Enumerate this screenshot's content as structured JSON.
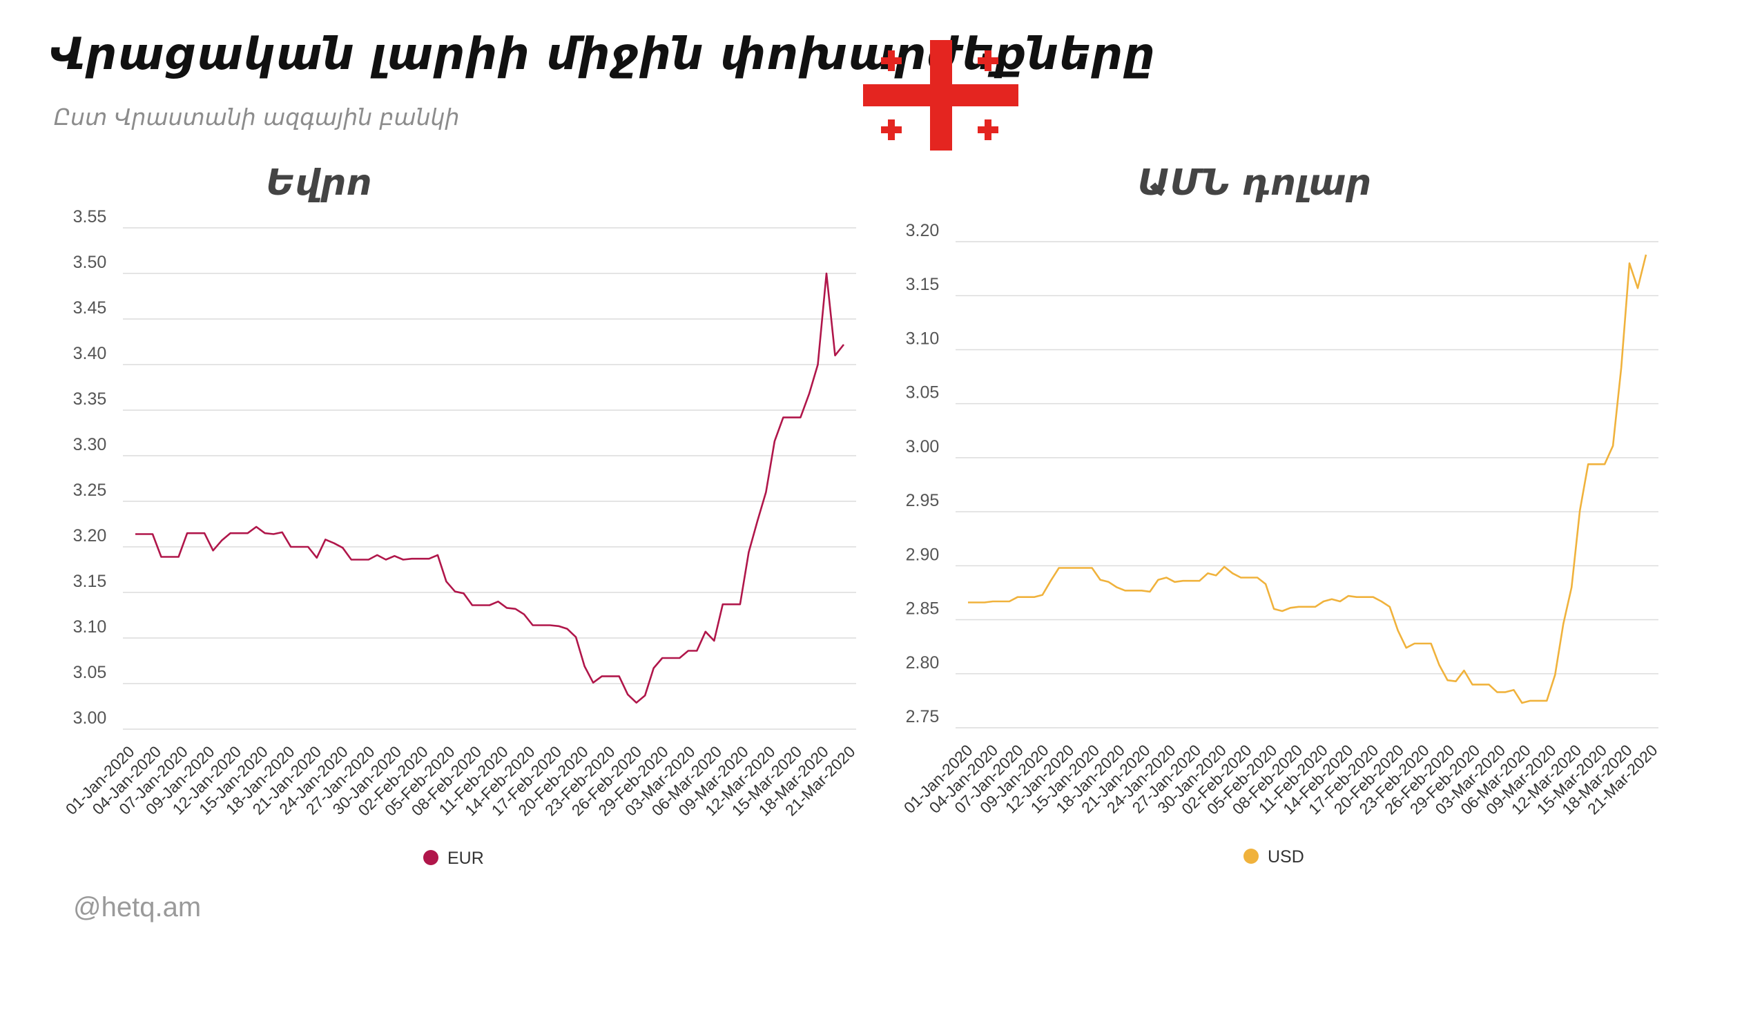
{
  "header": {
    "title": "Վրացական լարիի միջին փոխարժեքները",
    "subtitle": "Ըստ Վրաստանի ազգային բանկի"
  },
  "flag": {
    "icon": "georgia-flag-icon",
    "color": "#e42520"
  },
  "footer": {
    "source": "@hetq.am"
  },
  "chart_data": [
    {
      "type": "line",
      "title": "Եվրո",
      "legend_position": "bottom",
      "grid": true,
      "ylim": [
        3.0,
        3.55
      ],
      "yticks": [
        "3.00",
        "3.05",
        "3.10",
        "3.15",
        "3.20",
        "3.25",
        "3.30",
        "3.35",
        "3.40",
        "3.45",
        "3.50",
        "3.55"
      ],
      "x_tick_labels": [
        "01-Jan-2020",
        "04-Jan-2020",
        "07-Jan-2020",
        "09-Jan-2020",
        "12-Jan-2020",
        "15-Jan-2020",
        "18-Jan-2020",
        "21-Jan-2020",
        "24-Jan-2020",
        "27-Jan-2020",
        "30-Jan-2020",
        "02-Feb-2020",
        "05-Feb-2020",
        "08-Feb-2020",
        "11-Feb-2020",
        "14-Feb-2020",
        "17-Feb-2020",
        "20-Feb-2020",
        "23-Feb-2020",
        "26-Feb-2020",
        "29-Feb-2020",
        "03-Mar-2020",
        "06-Mar-2020",
        "09-Mar-2020",
        "12-Mar-2020",
        "15-Mar-2020",
        "18-Mar-2020",
        "21-Mar-2020"
      ],
      "color": "#b0164a",
      "series": [
        {
          "name": "EUR",
          "values": [
            3.214,
            3.214,
            3.214,
            3.189,
            3.189,
            3.189,
            3.215,
            3.215,
            3.215,
            3.196,
            3.207,
            3.215,
            3.215,
            3.215,
            3.222,
            3.215,
            3.214,
            3.216,
            3.2,
            3.2,
            3.2,
            3.188,
            3.208,
            3.204,
            3.199,
            3.186,
            3.186,
            3.186,
            3.191,
            3.186,
            3.19,
            3.186,
            3.187,
            3.187,
            3.187,
            3.191,
            3.162,
            3.151,
            3.149,
            3.136,
            3.136,
            3.136,
            3.14,
            3.133,
            3.132,
            3.126,
            3.114,
            3.114,
            3.114,
            3.113,
            3.11,
            3.101,
            3.069,
            3.051,
            3.058,
            3.058,
            3.058,
            3.038,
            3.029,
            3.037,
            3.067,
            3.078,
            3.078,
            3.078,
            3.086,
            3.086,
            3.107,
            3.097,
            3.137,
            3.137,
            3.137,
            3.194,
            3.228,
            3.26,
            3.316,
            3.342,
            3.342,
            3.342,
            3.368,
            3.4,
            3.5,
            3.41,
            3.422
          ]
        }
      ]
    },
    {
      "type": "line",
      "title": "ԱՄՆ դոլար",
      "legend_position": "bottom",
      "grid": true,
      "ylim": [
        2.75,
        3.2
      ],
      "yticks": [
        "2.75",
        "2.80",
        "2.85",
        "2.90",
        "2.95",
        "3.00",
        "3.05",
        "3.10",
        "3.15",
        "3.20"
      ],
      "x_tick_labels": [
        "01-Jan-2020",
        "04-Jan-2020",
        "07-Jan-2020",
        "09-Jan-2020",
        "12-Jan-2020",
        "15-Jan-2020",
        "18-Jan-2020",
        "21-Jan-2020",
        "24-Jan-2020",
        "27-Jan-2020",
        "30-Jan-2020",
        "02-Feb-2020",
        "05-Feb-2020",
        "08-Feb-2020",
        "11-Feb-2020",
        "14-Feb-2020",
        "17-Feb-2020",
        "20-Feb-2020",
        "23-Feb-2020",
        "26-Feb-2020",
        "29-Feb-2020",
        "03-Mar-2020",
        "06-Mar-2020",
        "09-Mar-2020",
        "12-Mar-2020",
        "15-Mar-2020",
        "18-Mar-2020",
        "21-Mar-2020"
      ],
      "color": "#f0b23c",
      "series": [
        {
          "name": "USD",
          "values": [
            2.866,
            2.866,
            2.866,
            2.867,
            2.867,
            2.867,
            2.871,
            2.871,
            2.871,
            2.873,
            2.886,
            2.898,
            2.898,
            2.898,
            2.898,
            2.898,
            2.887,
            2.885,
            2.88,
            2.877,
            2.877,
            2.877,
            2.876,
            2.887,
            2.889,
            2.885,
            2.886,
            2.886,
            2.886,
            2.893,
            2.891,
            2.899,
            2.893,
            2.889,
            2.889,
            2.889,
            2.883,
            2.86,
            2.858,
            2.861,
            2.862,
            2.862,
            2.862,
            2.867,
            2.869,
            2.867,
            2.872,
            2.871,
            2.871,
            2.871,
            2.867,
            2.862,
            2.84,
            2.824,
            2.828,
            2.828,
            2.828,
            2.808,
            2.794,
            2.793,
            2.803,
            2.79,
            2.79,
            2.79,
            2.783,
            2.783,
            2.785,
            2.773,
            2.775,
            2.775,
            2.775,
            2.799,
            2.846,
            2.88,
            2.951,
            2.994,
            2.994,
            2.994,
            3.011,
            3.083,
            3.18,
            3.157,
            3.188
          ]
        }
      ]
    }
  ]
}
